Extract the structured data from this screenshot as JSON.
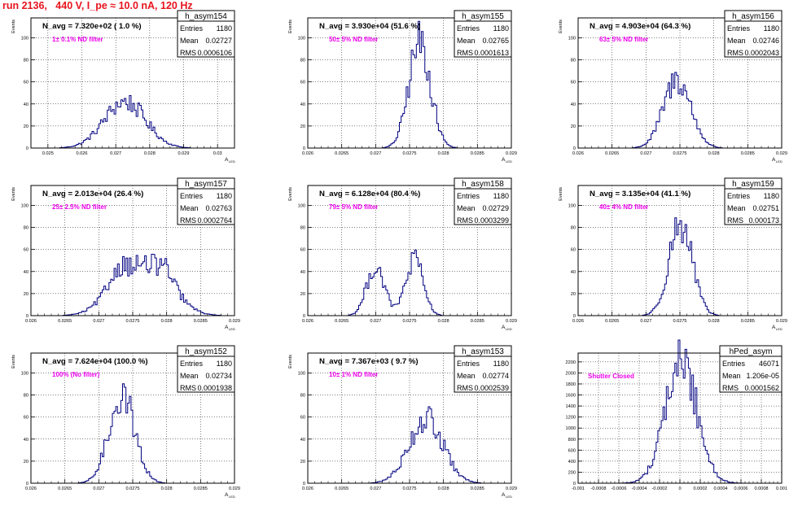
{
  "header": {
    "title": "run 2136,   440 V, I_pe ≈ 10.0 nA, 120 Hz"
  },
  "colors": {
    "title": "#e8141e",
    "annotation": "#ee00ee",
    "histogram": "#000080",
    "frame": "#000000",
    "grid": "#000000"
  },
  "chart_data": [
    {
      "type": "histogram",
      "hist_name": "h_asym154",
      "stats": [
        [
          "Entries",
          "1180"
        ],
        [
          "Mean",
          "0.02727"
        ],
        [
          "RMS",
          "0.0006106"
        ]
      ],
      "nlabel": "N_avg = 7.320e+02 ( 1.0 %)",
      "annotation": "1± 0.1% ND filter",
      "ylabel": "Events",
      "xlabel": "A",
      "xlabel_sub": "LED",
      "xlim": [
        0.0245,
        0.0305
      ],
      "ylim": [
        0,
        118
      ],
      "xticks": [
        0.025,
        0.026,
        0.027,
        0.028,
        0.029,
        0.03
      ],
      "xticklabels": [
        "0.025",
        "0.026",
        "0.027",
        "0.028",
        "0.029",
        "0.03"
      ],
      "yticks": [
        0,
        20,
        40,
        60,
        80,
        100
      ],
      "profile": {
        "mu": 0.02727,
        "sigma": 0.00061,
        "peak": 42
      },
      "grid": true
    },
    {
      "type": "histogram",
      "hist_name": "h_asym155",
      "stats": [
        [
          "Entries",
          "1180"
        ],
        [
          "Mean",
          "0.02765"
        ],
        [
          "RMS",
          "0.0001613"
        ]
      ],
      "nlabel": "N_avg = 3.930e+04 (51.6 %)",
      "annotation": "50± 5% ND filter",
      "ylabel": "Events",
      "xlabel": "A",
      "xlabel_sub": "LED",
      "xlim": [
        0.026,
        0.029
      ],
      "ylim": [
        0,
        118
      ],
      "xticks": [
        0.026,
        0.0265,
        0.027,
        0.0275,
        0.028,
        0.0285,
        0.029
      ],
      "xticklabels": [
        "0.026",
        "0.0265",
        "0.027",
        "0.0275",
        "0.028",
        "0.0285",
        "0.029"
      ],
      "yticks": [
        0,
        20,
        40,
        60,
        80,
        100
      ],
      "profile": {
        "mu": 0.02765,
        "sigma": 0.00016,
        "peak": 96
      },
      "grid": true
    },
    {
      "type": "histogram",
      "hist_name": "h_asym156",
      "stats": [
        [
          "Entries",
          "1180"
        ],
        [
          "Mean",
          "0.02746"
        ],
        [
          "RMS",
          "0.0002043"
        ]
      ],
      "nlabel": "N_avg = 4.903e+04 (64.3 %)",
      "annotation": "63± 5% ND filter",
      "ylabel": "Events",
      "xlabel": "A",
      "xlabel_sub": "LED",
      "xlim": [
        0.026,
        0.029
      ],
      "ylim": [
        0,
        118
      ],
      "xticks": [
        0.026,
        0.0265,
        0.027,
        0.0275,
        0.028,
        0.0285,
        0.029
      ],
      "xticklabels": [
        "0.026",
        "0.0265",
        "0.027",
        "0.0275",
        "0.028",
        "0.0285",
        "0.029"
      ],
      "yticks": [
        0,
        20,
        40,
        60,
        80,
        100
      ],
      "profile": {
        "mu": 0.02746,
        "sigma": 0.0002,
        "peak": 62
      },
      "grid": true
    },
    {
      "type": "histogram",
      "hist_name": "h_asym157",
      "stats": [
        [
          "Entries",
          "1180"
        ],
        [
          "Mean",
          "0.02763"
        ],
        [
          "RMS",
          "0.0002764"
        ]
      ],
      "nlabel": "N_avg = 2.013e+04 (26.4 %)",
      "annotation": "25± 2.5% ND filter",
      "ylabel": "Events",
      "xlabel": "A",
      "xlabel_sub": "LED",
      "xlim": [
        0.026,
        0.029
      ],
      "ylim": [
        0,
        118
      ],
      "xticks": [
        0.026,
        0.0265,
        0.027,
        0.0275,
        0.028,
        0.0285,
        0.029
      ],
      "xticklabels": [
        "0.026",
        "0.0265",
        "0.027",
        "0.0275",
        "0.028",
        "0.0285",
        "0.029"
      ],
      "yticks": [
        0,
        20,
        40,
        60,
        80,
        100
      ],
      "profile": {
        "mu": 0.02763,
        "sigma": 0.00028,
        "peak": 46,
        "flat": true
      },
      "grid": true
    },
    {
      "type": "histogram",
      "hist_name": "h_asym158",
      "stats": [
        [
          "Entries",
          "1180"
        ],
        [
          "Mean",
          "0.02729"
        ],
        [
          "RMS",
          "0.0003299"
        ]
      ],
      "nlabel": "N_avg = 6.128e+04 (80.4 %)",
      "annotation": "79± 5% ND filter",
      "ylabel": "Events",
      "xlabel": "A",
      "xlabel_sub": "LED",
      "xlim": [
        0.026,
        0.029
      ],
      "ylim": [
        0,
        118
      ],
      "xticks": [
        0.026,
        0.0265,
        0.027,
        0.0275,
        0.028,
        0.0285,
        0.029
      ],
      "xticklabels": [
        "0.026",
        "0.0265",
        "0.027",
        "0.0275",
        "0.028",
        "0.0285",
        "0.029"
      ],
      "yticks": [
        0,
        20,
        40,
        60,
        80,
        100
      ],
      "profile": {
        "bimodal": true,
        "mu1": 0.027,
        "mu2": 0.02757,
        "sigma": 0.00013,
        "peak1": 45,
        "peak2": 50
      },
      "grid": true
    },
    {
      "type": "histogram",
      "hist_name": "h_asym159",
      "stats": [
        [
          "Entries",
          "1180"
        ],
        [
          "Mean",
          "0.02751"
        ],
        [
          "RMS",
          "0.000173"
        ]
      ],
      "nlabel": "N_avg = 3.135e+04 (41.1 %)",
      "annotation": "40± 4% ND filter",
      "ylabel": "Events",
      "xlabel": "A",
      "xlabel_sub": "LED",
      "xlim": [
        0.026,
        0.029
      ],
      "ylim": [
        0,
        118
      ],
      "xticks": [
        0.026,
        0.0265,
        0.027,
        0.0275,
        0.028,
        0.0285,
        0.029
      ],
      "xticklabels": [
        "0.026",
        "0.0265",
        "0.027",
        "0.0275",
        "0.028",
        "0.0285",
        "0.029"
      ],
      "yticks": [
        0,
        20,
        40,
        60,
        80,
        100
      ],
      "profile": {
        "mu": 0.02751,
        "sigma": 0.00017,
        "peak": 84
      },
      "grid": true
    },
    {
      "type": "histogram",
      "hist_name": "h_asym152",
      "stats": [
        [
          "Entries",
          "1180"
        ],
        [
          "Mean",
          "0.02734"
        ],
        [
          "RMS",
          "0.0001938"
        ]
      ],
      "nlabel": "N_avg = 7.624e+04 (100.0 %)",
      "annotation": "100% (No filter)",
      "ylabel": "Events",
      "xlabel": "A",
      "xlabel_sub": "LED",
      "xlim": [
        0.026,
        0.029
      ],
      "ylim": [
        0,
        118
      ],
      "xticks": [
        0.026,
        0.0265,
        0.027,
        0.0275,
        0.028,
        0.0285,
        0.029
      ],
      "xticklabels": [
        "0.026",
        "0.0265",
        "0.027",
        "0.0275",
        "0.028",
        "0.0285",
        "0.029"
      ],
      "yticks": [
        0,
        20,
        40,
        60,
        80,
        100
      ],
      "profile": {
        "mu": 0.02734,
        "sigma": 0.00019,
        "peak": 80
      },
      "grid": true
    },
    {
      "type": "histogram",
      "hist_name": "h_asym153",
      "stats": [
        [
          "Entries",
          "1180"
        ],
        [
          "Mean",
          "0.02774"
        ],
        [
          "RMS",
          "0.0002539"
        ]
      ],
      "nlabel": "N_avg = 7.367e+03 ( 9.7 %)",
      "annotation": "10± 1% ND filter",
      "ylabel": "Events",
      "xlabel": "A",
      "xlabel_sub": "LED",
      "xlim": [
        0.026,
        0.029
      ],
      "ylim": [
        0,
        118
      ],
      "xticks": [
        0.026,
        0.0265,
        0.027,
        0.0275,
        0.028,
        0.0285,
        0.029
      ],
      "xticklabels": [
        "0.026",
        "0.0265",
        "0.027",
        "0.0275",
        "0.028",
        "0.0285",
        "0.029"
      ],
      "yticks": [
        0,
        20,
        40,
        60,
        80,
        100
      ],
      "profile": {
        "mu": 0.02774,
        "sigma": 0.00025,
        "peak": 58
      },
      "grid": true
    },
    {
      "type": "histogram",
      "hist_name": "hPed_asym",
      "stats": [
        [
          "Entries",
          "46071"
        ],
        [
          "Mean",
          "1.206e-05"
        ],
        [
          "RMS",
          "0.0001562"
        ]
      ],
      "nlabel": "",
      "annotation": "Shutter Closed",
      "ylabel": "",
      "xlabel": "",
      "xlabel_sub": "",
      "xlim": [
        -0.001,
        0.001
      ],
      "ylim": [
        0,
        2360
      ],
      "xticks": [
        -0.001,
        -0.0008,
        -0.0006,
        -0.0004,
        -0.0002,
        0,
        0.0002,
        0.0004,
        0.0006,
        0.0008,
        0.001
      ],
      "xticklabels": [
        "-0.001",
        "-0.0008",
        "-0.0006",
        "-0.0004",
        "-0.0002",
        "0",
        "0.0002",
        "0.0004",
        "0.0006",
        "0.0008",
        "0.001"
      ],
      "yticks": [
        0,
        200,
        400,
        600,
        800,
        1000,
        1200,
        1400,
        1600,
        1800,
        2000,
        2200
      ],
      "profile": {
        "mu": 1.206e-05,
        "sigma": 0.000156,
        "peak": 2210
      },
      "grid": true
    }
  ]
}
